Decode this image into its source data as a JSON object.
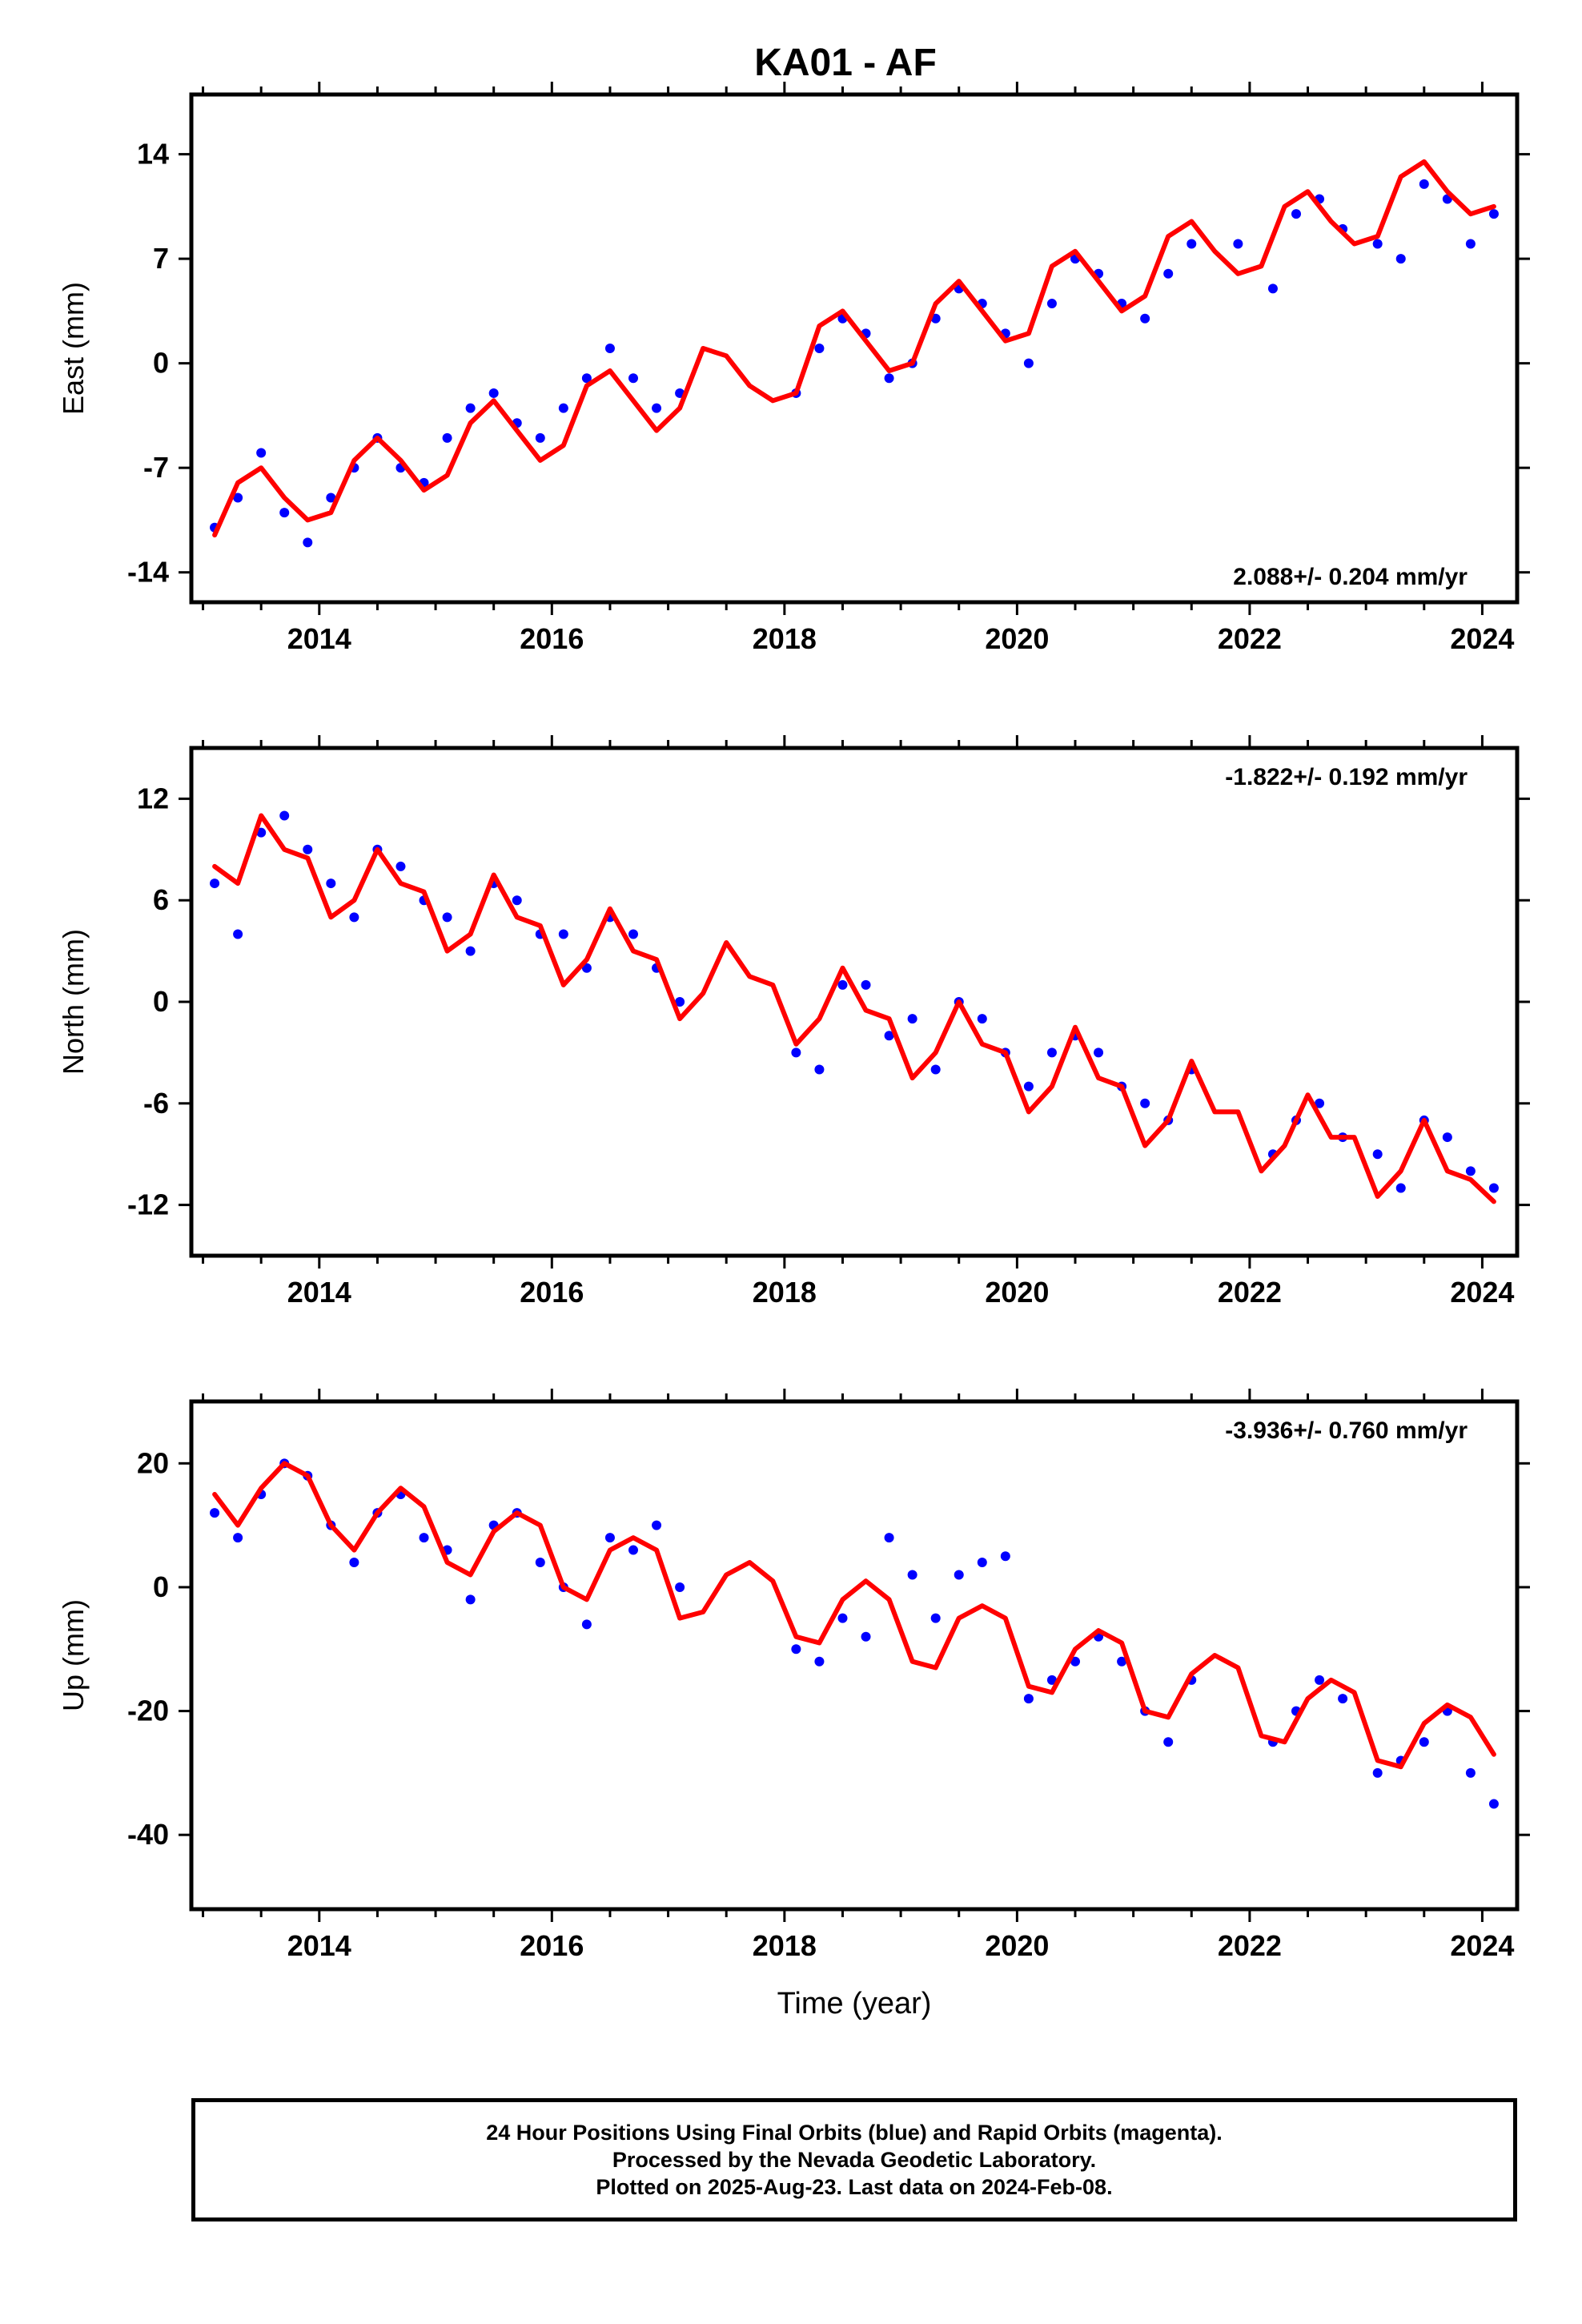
{
  "title": "KA01 - AF",
  "footer": {
    "line1": "24 Hour Positions Using Final Orbits (blue) and Rapid Orbits (magenta).",
    "line2": "Processed by the Nevada Geodetic Laboratory.",
    "line3": "Plotted on 2025-Aug-23. Last data on 2024-Feb-08."
  },
  "colors": {
    "final_orbits": "#0000ff",
    "rapid_orbits": "#ff00ff",
    "model_fit": "#ff0000",
    "axes": "#000000"
  },
  "chart_data": [
    {
      "type": "scatter",
      "ylabel": "East (mm)",
      "xlabel": "",
      "rate_label": "2.088+/- 0.204 mm/yr",
      "rate_position": "bottom-right",
      "xlim": [
        2012.9,
        2024.3
      ],
      "ylim": [
        -16,
        18
      ],
      "x_ticks": [
        "2014",
        "2016",
        "2018",
        "2020",
        "2022",
        "2024"
      ],
      "y_ticks": [
        "-14",
        "-7",
        "0",
        "7",
        "14"
      ],
      "y_tick_values": [
        -14,
        -7,
        0,
        7,
        14
      ],
      "grid": false,
      "series": [
        {
          "kind": "points",
          "x": [
            2013.1,
            2013.3,
            2013.5,
            2013.7,
            2013.9,
            2014.1,
            2014.3,
            2014.5,
            2014.7,
            2014.9,
            2015.1,
            2015.3,
            2015.5,
            2015.7,
            2015.9,
            2016.1,
            2016.3,
            2016.5,
            2016.7,
            2016.9,
            2017.1,
            2018.1,
            2018.3,
            2018.5,
            2018.7,
            2018.9,
            2019.1,
            2019.3,
            2019.5,
            2019.7,
            2019.9,
            2020.1,
            2020.3,
            2020.5,
            2020.7,
            2020.9,
            2021.1,
            2021.3,
            2021.5,
            2021.9,
            2022.2,
            2022.4,
            2022.6,
            2022.8,
            2023.1,
            2023.3,
            2023.5,
            2023.7,
            2023.9,
            2024.1
          ],
          "y": [
            -11,
            -9,
            -6,
            -10,
            -12,
            -9,
            -7,
            -5,
            -7,
            -8,
            -5,
            -3,
            -2,
            -4,
            -5,
            -3,
            -1,
            1,
            -1,
            -3,
            -2,
            -2,
            1,
            3,
            2,
            -1,
            0,
            3,
            5,
            4,
            2,
            0,
            4,
            7,
            6,
            4,
            3,
            6,
            8,
            8,
            5,
            10,
            11,
            9,
            8,
            7,
            12,
            11,
            8,
            10
          ]
        },
        {
          "kind": "fit",
          "x": [
            2013.1,
            2013.3,
            2013.5,
            2013.7,
            2013.9,
            2014.1,
            2014.3,
            2014.5,
            2014.7,
            2014.9,
            2015.1,
            2015.3,
            2015.5,
            2015.7,
            2015.9,
            2016.1,
            2016.3,
            2016.5,
            2016.7,
            2016.9,
            2017.1,
            2017.3,
            2017.5,
            2017.7,
            2017.9,
            2018.1,
            2018.3,
            2018.5,
            2018.7,
            2018.9,
            2019.1,
            2019.3,
            2019.5,
            2019.7,
            2019.9,
            2020.1,
            2020.3,
            2020.5,
            2020.7,
            2020.9,
            2021.1,
            2021.3,
            2021.5,
            2021.7,
            2021.9,
            2022.1,
            2022.3,
            2022.5,
            2022.7,
            2022.9,
            2023.1,
            2023.3,
            2023.5,
            2023.7,
            2023.9,
            2024.1
          ],
          "y": [
            -11.5,
            -8,
            -7,
            -9,
            -10.5,
            -10,
            -6.5,
            -5,
            -6.5,
            -8.5,
            -7.5,
            -4,
            -2.5,
            -4.5,
            -6.5,
            -5.5,
            -1.5,
            -0.5,
            -2.5,
            -4.5,
            -3,
            1,
            0.5,
            -1.5,
            -2.5,
            -2,
            2.5,
            3.5,
            1.5,
            -0.5,
            0,
            4,
            5.5,
            3.5,
            1.5,
            2,
            6.5,
            7.5,
            5.5,
            3.5,
            4.5,
            8.5,
            9.5,
            7.5,
            6,
            6.5,
            10.5,
            11.5,
            9.5,
            8,
            8.5,
            12.5,
            13.5,
            11.5,
            10,
            10.5
          ]
        }
      ]
    },
    {
      "type": "scatter",
      "ylabel": "North (mm)",
      "xlabel": "",
      "rate_label": "-1.822+/- 0.192 mm/yr",
      "rate_position": "top-right",
      "xlim": [
        2012.9,
        2024.3
      ],
      "ylim": [
        -15,
        15
      ],
      "x_ticks": [
        "2014",
        "2016",
        "2018",
        "2020",
        "2022",
        "2024"
      ],
      "y_ticks": [
        "-12",
        "-6",
        "0",
        "6",
        "12"
      ],
      "y_tick_values": [
        -12,
        -6,
        0,
        6,
        12
      ],
      "grid": false,
      "series": [
        {
          "kind": "points",
          "x": [
            2013.1,
            2013.3,
            2013.5,
            2013.7,
            2013.9,
            2014.1,
            2014.3,
            2014.5,
            2014.7,
            2014.9,
            2015.1,
            2015.3,
            2015.5,
            2015.7,
            2015.9,
            2016.1,
            2016.3,
            2016.5,
            2016.7,
            2016.9,
            2017.1,
            2018.1,
            2018.3,
            2018.5,
            2018.7,
            2018.9,
            2019.1,
            2019.3,
            2019.5,
            2019.7,
            2019.9,
            2020.1,
            2020.3,
            2020.5,
            2020.7,
            2020.9,
            2021.1,
            2021.3,
            2021.5,
            2022.2,
            2022.4,
            2022.6,
            2022.8,
            2023.1,
            2023.3,
            2023.5,
            2023.7,
            2023.9,
            2024.1
          ],
          "y": [
            7,
            4,
            10,
            11,
            9,
            7,
            5,
            9,
            8,
            6,
            5,
            3,
            7,
            6,
            4,
            4,
            2,
            5,
            4,
            2,
            0,
            -3,
            -4,
            1,
            1,
            -2,
            -1,
            -4,
            0,
            -1,
            -3,
            -5,
            -3,
            -2,
            -3,
            -5,
            -6,
            -7,
            -4,
            -9,
            -7,
            -6,
            -8,
            -9,
            -11,
            -7,
            -8,
            -10,
            -11
          ]
        },
        {
          "kind": "fit",
          "x": [
            2013.1,
            2013.3,
            2013.5,
            2013.7,
            2013.9,
            2014.1,
            2014.3,
            2014.5,
            2014.7,
            2014.9,
            2015.1,
            2015.3,
            2015.5,
            2015.7,
            2015.9,
            2016.1,
            2016.3,
            2016.5,
            2016.7,
            2016.9,
            2017.1,
            2017.3,
            2017.5,
            2017.7,
            2017.9,
            2018.1,
            2018.3,
            2018.5,
            2018.7,
            2018.9,
            2019.1,
            2019.3,
            2019.5,
            2019.7,
            2019.9,
            2020.1,
            2020.3,
            2020.5,
            2020.7,
            2020.9,
            2021.1,
            2021.3,
            2021.5,
            2021.7,
            2021.9,
            2022.1,
            2022.3,
            2022.5,
            2022.7,
            2022.9,
            2023.1,
            2023.3,
            2023.5,
            2023.7,
            2023.9,
            2024.1
          ],
          "y": [
            8,
            7,
            11,
            9,
            8.5,
            5,
            6,
            9,
            7,
            6.5,
            3,
            4,
            7.5,
            5,
            4.5,
            1,
            2.5,
            5.5,
            3,
            2.5,
            -1,
            0.5,
            3.5,
            1.5,
            1,
            -2.5,
            -1,
            2,
            -0.5,
            -1,
            -4.5,
            -3,
            0,
            -2.5,
            -3,
            -6.5,
            -5,
            -1.5,
            -4.5,
            -5,
            -8.5,
            -7,
            -3.5,
            -6.5,
            -6.5,
            -10,
            -8.5,
            -5.5,
            -8,
            -8,
            -11.5,
            -10,
            -7,
            -10,
            -10.5,
            -11.8
          ]
        }
      ]
    },
    {
      "type": "scatter",
      "ylabel": "Up (mm)",
      "xlabel": "Time (year)",
      "rate_label": "-3.936+/- 0.760 mm/yr",
      "rate_position": "top-right",
      "xlim": [
        2012.9,
        2024.3
      ],
      "ylim": [
        -52,
        30
      ],
      "x_ticks": [
        "2014",
        "2016",
        "2018",
        "2020",
        "2022",
        "2024"
      ],
      "y_ticks": [
        "-40",
        "-20",
        "0",
        "20"
      ],
      "y_tick_values": [
        -40,
        -20,
        0,
        20
      ],
      "grid": false,
      "series": [
        {
          "kind": "points",
          "x": [
            2013.1,
            2013.3,
            2013.5,
            2013.7,
            2013.9,
            2014.1,
            2014.3,
            2014.5,
            2014.7,
            2014.9,
            2015.1,
            2015.3,
            2015.5,
            2015.7,
            2015.9,
            2016.1,
            2016.3,
            2016.5,
            2016.7,
            2016.9,
            2017.1,
            2018.1,
            2018.3,
            2018.5,
            2018.7,
            2018.9,
            2019.1,
            2019.3,
            2019.5,
            2019.7,
            2019.9,
            2020.1,
            2020.3,
            2020.5,
            2020.7,
            2020.9,
            2021.1,
            2021.3,
            2021.5,
            2022.2,
            2022.4,
            2022.6,
            2022.8,
            2023.1,
            2023.3,
            2023.5,
            2023.7,
            2023.9,
            2024.1
          ],
          "y": [
            12,
            8,
            15,
            20,
            18,
            10,
            4,
            12,
            15,
            8,
            6,
            -2,
            10,
            12,
            4,
            0,
            -6,
            8,
            6,
            10,
            0,
            -10,
            -12,
            -5,
            -8,
            8,
            2,
            -5,
            2,
            4,
            5,
            -18,
            -15,
            -12,
            -8,
            -12,
            -20,
            -25,
            -15,
            -25,
            -20,
            -15,
            -18,
            -30,
            -28,
            -25,
            -20,
            -30,
            -35
          ]
        },
        {
          "kind": "fit",
          "x": [
            2013.1,
            2013.3,
            2013.5,
            2013.7,
            2013.9,
            2014.1,
            2014.3,
            2014.5,
            2014.7,
            2014.9,
            2015.1,
            2015.3,
            2015.5,
            2015.7,
            2015.9,
            2016.1,
            2016.3,
            2016.5,
            2016.7,
            2016.9,
            2017.1,
            2017.3,
            2017.5,
            2017.7,
            2017.9,
            2018.1,
            2018.3,
            2018.5,
            2018.7,
            2018.9,
            2019.1,
            2019.3,
            2019.5,
            2019.7,
            2019.9,
            2020.1,
            2020.3,
            2020.5,
            2020.7,
            2020.9,
            2021.1,
            2021.3,
            2021.5,
            2021.7,
            2021.9,
            2022.1,
            2022.3,
            2022.5,
            2022.7,
            2022.9,
            2023.1,
            2023.3,
            2023.5,
            2023.7,
            2023.9,
            2024.1
          ],
          "y": [
            15,
            10,
            16,
            20,
            18,
            10,
            6,
            12,
            16,
            13,
            4,
            2,
            9,
            12,
            10,
            0,
            -2,
            6,
            8,
            6,
            -5,
            -4,
            2,
            4,
            1,
            -8,
            -9,
            -2,
            1,
            -2,
            -12,
            -13,
            -5,
            -3,
            -5,
            -16,
            -17,
            -10,
            -7,
            -9,
            -20,
            -21,
            -14,
            -11,
            -13,
            -24,
            -25,
            -18,
            -15,
            -17,
            -28,
            -29,
            -22,
            -19,
            -21,
            -27
          ]
        }
      ]
    }
  ]
}
